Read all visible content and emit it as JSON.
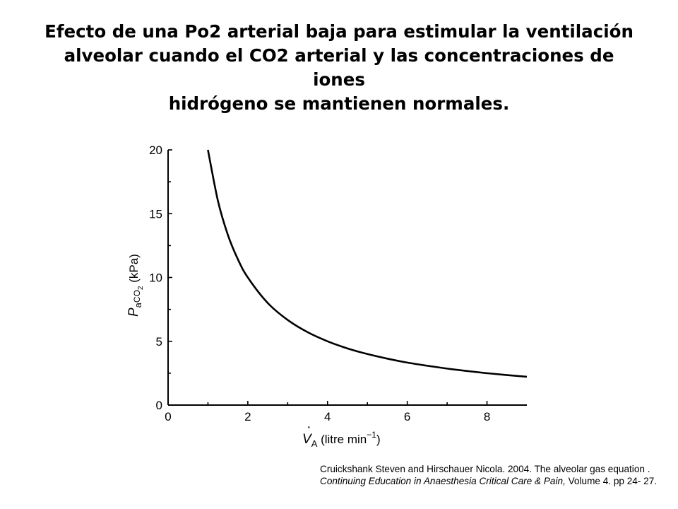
{
  "slide": {
    "title_lines": [
      "Efecto de una Po2 arterial baja para estimular la ventilación",
      "alveolar cuando el CO2 arterial y las concentraciones de",
      "iones",
      "hidrógeno se mantienen normales."
    ]
  },
  "chart_data": {
    "type": "line",
    "xlabel_parts": {
      "symbol": "V",
      "dot": "·",
      "sub": "A",
      "text": " (litre min",
      "sup": "−1",
      "close": ")"
    },
    "ylabel_parts": {
      "symbol": "P",
      "sub": "a",
      "subsub": "CO",
      "subsubsub": "2",
      "text": " (kPa)"
    },
    "xlim": [
      0,
      9
    ],
    "ylim": [
      0,
      20
    ],
    "x_ticks": [
      "0",
      "2",
      "4",
      "6",
      "8"
    ],
    "y_ticks": [
      "0",
      "5",
      "10",
      "15",
      "20"
    ],
    "grid": false,
    "series": [
      {
        "x": [
          1.0,
          1.25,
          1.5,
          1.75,
          2.0,
          2.5,
          3.0,
          3.5,
          4.0,
          4.5,
          5.0,
          5.5,
          6.0,
          6.5,
          7.0,
          7.5,
          8.0,
          8.5,
          9.0
        ],
        "y": [
          20.0,
          16.0,
          13.33,
          11.43,
          10.0,
          8.0,
          6.67,
          5.71,
          5.0,
          4.44,
          4.0,
          3.64,
          3.33,
          3.08,
          2.86,
          2.67,
          2.5,
          2.35,
          2.22
        ]
      }
    ]
  },
  "citation": {
    "part1": "Cruickshank Steven and  Hirschauer Nicola. 2004. The alveolar gas equation . ",
    "journal": "Continuing Education in Anaesthesia Critical Care & Pain,",
    "part2": " Volume 4. pp 24- 27."
  }
}
